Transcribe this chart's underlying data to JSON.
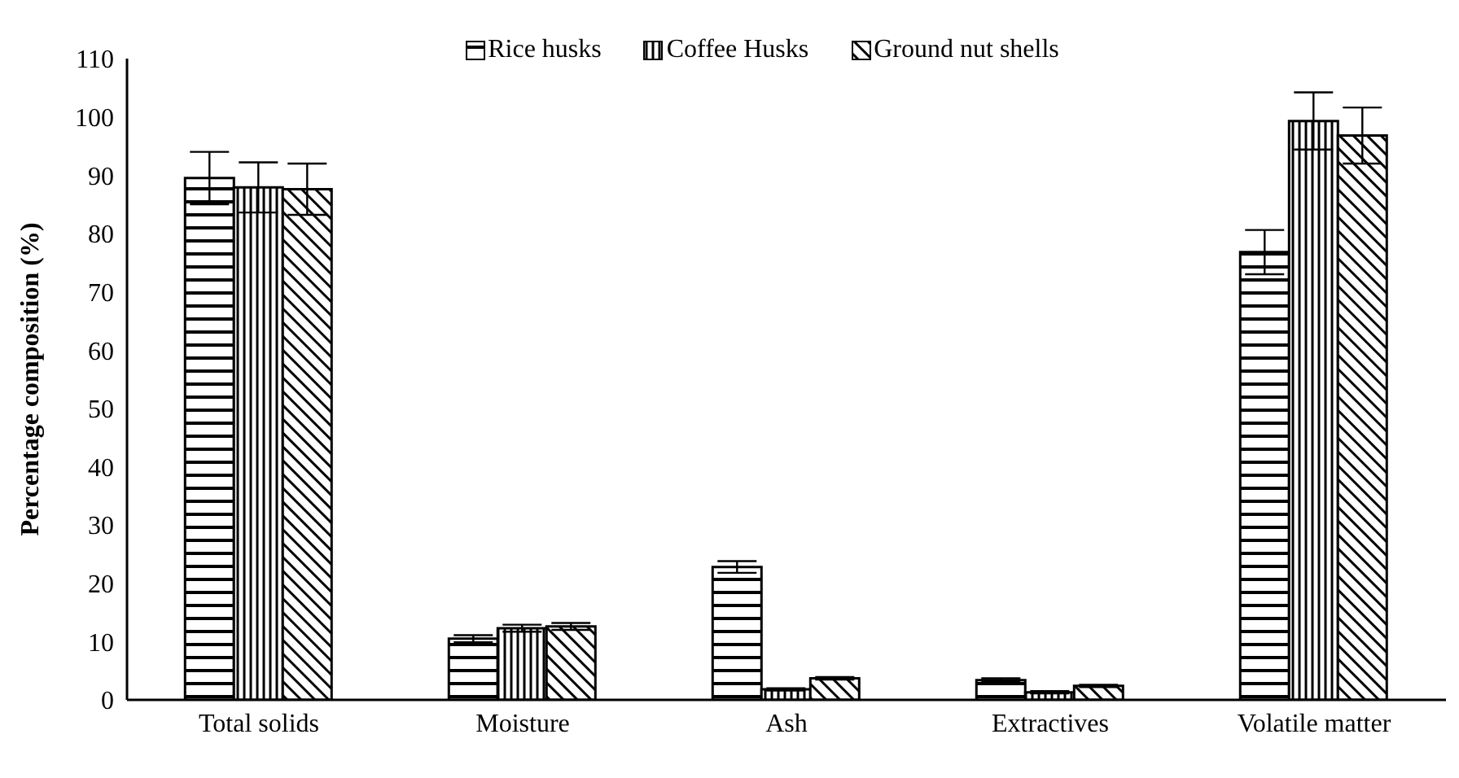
{
  "chart_data": {
    "type": "bar",
    "ylabel": "Percentage composition (%)",
    "categories": [
      "Total solids",
      "Moisture",
      "Ash",
      "Extractives",
      "Volatile matter"
    ],
    "series": [
      {
        "name": "Rice husks",
        "color": "#000000",
        "values": [
          89.5,
          10.5,
          22.8,
          3.4,
          76.8
        ],
        "errors": [
          4.5,
          0.6,
          1.0,
          0.3,
          3.8
        ]
      },
      {
        "name": "Coffee Husks",
        "color": "#000000",
        "values": [
          87.9,
          12.3,
          1.8,
          1.3,
          99.3
        ],
        "errors": [
          4.3,
          0.6,
          0.2,
          0.2,
          4.9
        ]
      },
      {
        "name": "Ground nut shells",
        "color": "#000000",
        "values": [
          87.6,
          12.6,
          3.7,
          2.4,
          96.8
        ],
        "errors": [
          4.4,
          0.6,
          0.2,
          0.2,
          4.8
        ]
      }
    ],
    "ylim": [
      0,
      110
    ],
    "yticks": [
      0,
      10,
      20,
      30,
      40,
      50,
      60,
      70,
      80,
      90,
      100,
      110
    ],
    "grid": false,
    "legend": "top"
  }
}
